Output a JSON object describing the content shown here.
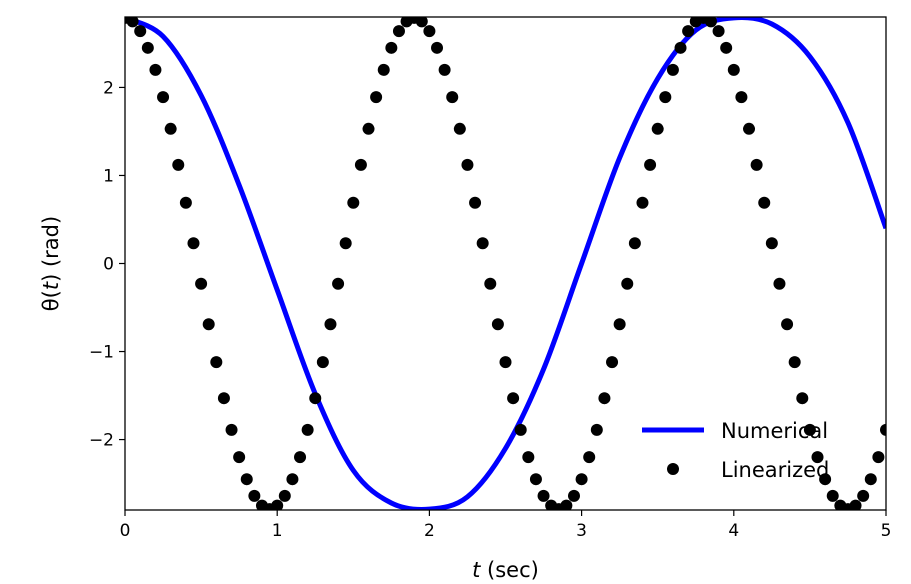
{
  "chart_data": {
    "type": "line",
    "title": "",
    "xlabel": {
      "italic": "t",
      "rest": " (sec)"
    },
    "ylabel": {
      "pre": "θ(",
      "italic": "t",
      "post": ") (rad)"
    },
    "xlim": [
      0,
      5
    ],
    "ylim": [
      -2.8,
      2.8
    ],
    "xticks": [
      0,
      1,
      2,
      3,
      4,
      5
    ],
    "xtick_labels": [
      "0",
      "1",
      "2",
      "3",
      "4",
      "5"
    ],
    "yticks": [
      -2,
      -1,
      0,
      1,
      2
    ],
    "ytick_labels": [
      "−2",
      "−1",
      "0",
      "1",
      "2"
    ],
    "grid": false,
    "legend_position": "lower-right",
    "series": [
      {
        "name": "Numerical",
        "style": "line",
        "color": "#0000ff",
        "x": [
          0.0,
          0.25,
          0.5,
          0.75,
          1.0,
          1.25,
          1.5,
          1.75,
          2.0,
          2.25,
          2.5,
          2.75,
          3.0,
          3.25,
          3.5,
          3.75,
          4.0,
          4.25,
          4.5,
          4.75,
          5.0
        ],
        "y": [
          2.79,
          2.58,
          1.91,
          0.89,
          -0.3,
          -1.48,
          -2.35,
          -2.72,
          -2.79,
          -2.65,
          -2.1,
          -1.2,
          0.0,
          1.2,
          2.1,
          2.65,
          2.79,
          2.72,
          2.35,
          1.6,
          0.4
        ]
      },
      {
        "name": "Linearized",
        "style": "markers",
        "color": "#000000",
        "x": [
          0.0,
          0.05,
          0.1,
          0.15,
          0.2,
          0.25,
          0.3,
          0.35,
          0.4,
          0.45,
          0.5,
          0.55,
          0.6,
          0.65,
          0.7,
          0.75,
          0.8,
          0.85,
          0.9,
          0.95,
          1.0,
          1.05,
          1.1,
          1.15,
          1.2,
          1.25,
          1.3,
          1.35,
          1.4,
          1.45,
          1.5,
          1.55,
          1.6,
          1.65,
          1.7,
          1.75,
          1.8,
          1.85,
          1.9,
          1.95,
          2.0,
          2.05,
          2.1,
          2.15,
          2.2,
          2.25,
          2.3,
          2.35,
          2.4,
          2.45,
          2.5,
          2.55,
          2.6,
          2.65,
          2.7,
          2.75,
          2.8,
          2.85,
          2.9,
          2.95,
          3.0,
          3.05,
          3.1,
          3.15,
          3.2,
          3.25,
          3.3,
          3.35,
          3.4,
          3.45,
          3.5,
          3.55,
          3.6,
          3.65,
          3.7,
          3.75,
          3.8,
          3.85,
          3.9,
          3.95,
          4.0,
          4.05,
          4.1,
          4.15,
          4.2,
          4.25,
          4.3,
          4.35,
          4.4,
          4.45,
          4.5,
          4.55,
          4.6,
          4.65,
          4.7,
          4.75,
          4.8,
          4.85,
          4.9,
          4.95,
          5.0
        ],
        "y": [
          2.79,
          2.75,
          2.64,
          2.45,
          2.2,
          1.89,
          1.53,
          1.12,
          0.69,
          0.23,
          -0.23,
          -0.69,
          -1.12,
          -1.53,
          -1.89,
          -2.2,
          -2.45,
          -2.64,
          -2.75,
          -2.79,
          -2.75,
          -2.64,
          -2.45,
          -2.2,
          -1.89,
          -1.53,
          -1.12,
          -0.69,
          -0.23,
          0.23,
          0.69,
          1.12,
          1.53,
          1.89,
          2.2,
          2.45,
          2.64,
          2.75,
          2.79,
          2.75,
          2.64,
          2.45,
          2.2,
          1.89,
          1.53,
          1.12,
          0.69,
          0.23,
          -0.23,
          -0.69,
          -1.12,
          -1.53,
          -1.89,
          -2.2,
          -2.45,
          -2.64,
          -2.75,
          -2.79,
          -2.75,
          -2.64,
          -2.45,
          -2.2,
          -1.89,
          -1.53,
          -1.12,
          -0.69,
          -0.23,
          0.23,
          0.69,
          1.12,
          1.53,
          1.89,
          2.2,
          2.45,
          2.64,
          2.75,
          2.79,
          2.75,
          2.64,
          2.45,
          2.2,
          1.89,
          1.53,
          1.12,
          0.69,
          0.23,
          -0.23,
          -0.69,
          -1.12,
          -1.53,
          -1.89,
          -2.2,
          -2.45,
          -2.64,
          -2.75,
          -2.79,
          -2.75,
          -2.64,
          -2.45,
          -2.2,
          -1.89
        ]
      }
    ]
  }
}
